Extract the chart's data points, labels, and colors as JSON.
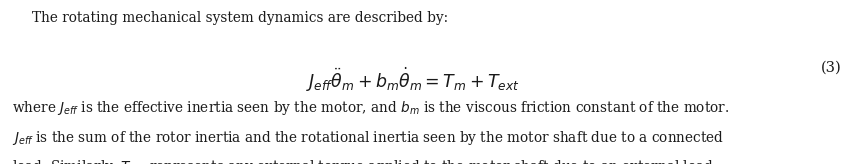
{
  "background_color": "#ffffff",
  "figsize": [
    8.61,
    1.64
  ],
  "dpi": 100,
  "text_color": "#1a1a1a",
  "line1": "The rotating mechanical system dynamics are described by:",
  "equation": "$J_{eff}\\ddot{\\theta}_m + b_m\\dot{\\theta}_m = T_m + T_{ext}$",
  "eq_number": "(3)",
  "para_line1": "where $J_{eff}$ is the effective inertia seen by the motor, and $b_m$ is the viscous friction constant of the motor.",
  "para_line2": "$J_{eff}$ is the sum of the rotor inertia and the rotational inertia seen by the motor shaft due to a connected",
  "para_line3": "load. Similarly, $T_{ext}$ represents any external torque applied to the motor shaft due to an external load.",
  "font_size_header": 9.8,
  "font_size_eq": 12.5,
  "font_size_para": 9.8,
  "font_size_eqnum": 10.5
}
